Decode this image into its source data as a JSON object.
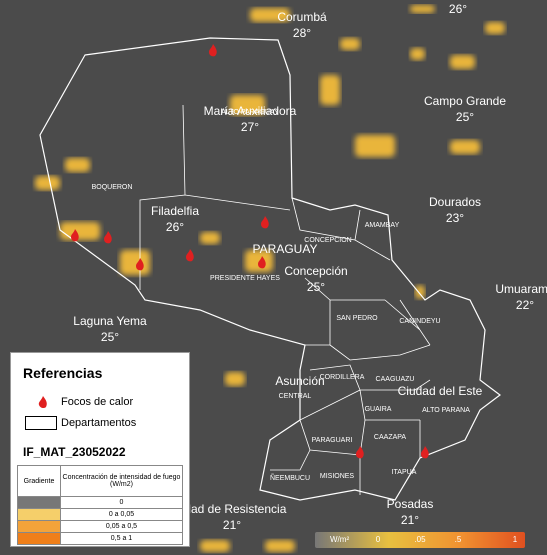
{
  "map": {
    "cities": [
      {
        "name": "Corumbá",
        "temp": "28°"
      },
      {
        "name": "María Auxiliadora",
        "temp": "27°"
      },
      {
        "name": "Campo Grande",
        "temp": "25°"
      },
      {
        "name": "Filadelfia",
        "temp": "26°"
      },
      {
        "name": "Dourados",
        "temp": "23°"
      },
      {
        "name": "Concepción",
        "temp": "25°"
      },
      {
        "name": "Umuarama",
        "temp": "22°"
      },
      {
        "name": "Laguna Yema",
        "temp": "25°"
      },
      {
        "name": "Posadas",
        "temp": "21°"
      },
      {
        "name": "udad de Resistencia",
        "temp": "21°"
      }
    ],
    "extra_temp": "26°",
    "places": [
      "Asunción",
      "Ciudad del Este"
    ],
    "country": "PARAGUAY",
    "departments": [
      "ALTO PARAGUAY",
      "BOQUERON",
      "PRESIDENTE HAYES",
      "CONCEPCION",
      "AMAMBAY",
      "SAN PEDRO",
      "CANINDEYU",
      "CORDILLERA",
      "CAAGUAZU",
      "CENTRAL",
      "GUAIRA",
      "ALTO PARANA",
      "PARAGUARI",
      "CAAZAPA",
      "MISIONES",
      "ITAPUA",
      "ÑEEMBUCU"
    ]
  },
  "legend": {
    "title": "Referencias",
    "items": [
      "Focos de calor",
      "Departamentos"
    ],
    "layer": "IF_MAT_23052022",
    "table": {
      "header": [
        "Gradiente",
        "Concentración de intensidad de fuego (W/m2)"
      ],
      "rows": [
        "0",
        "0 a 0,05",
        "0,05 a 0,5",
        "0,5 a 1"
      ]
    }
  },
  "colorbar": {
    "unit": "W/m²",
    "labels": [
      "0",
      ".05",
      ".5",
      "1"
    ]
  }
}
